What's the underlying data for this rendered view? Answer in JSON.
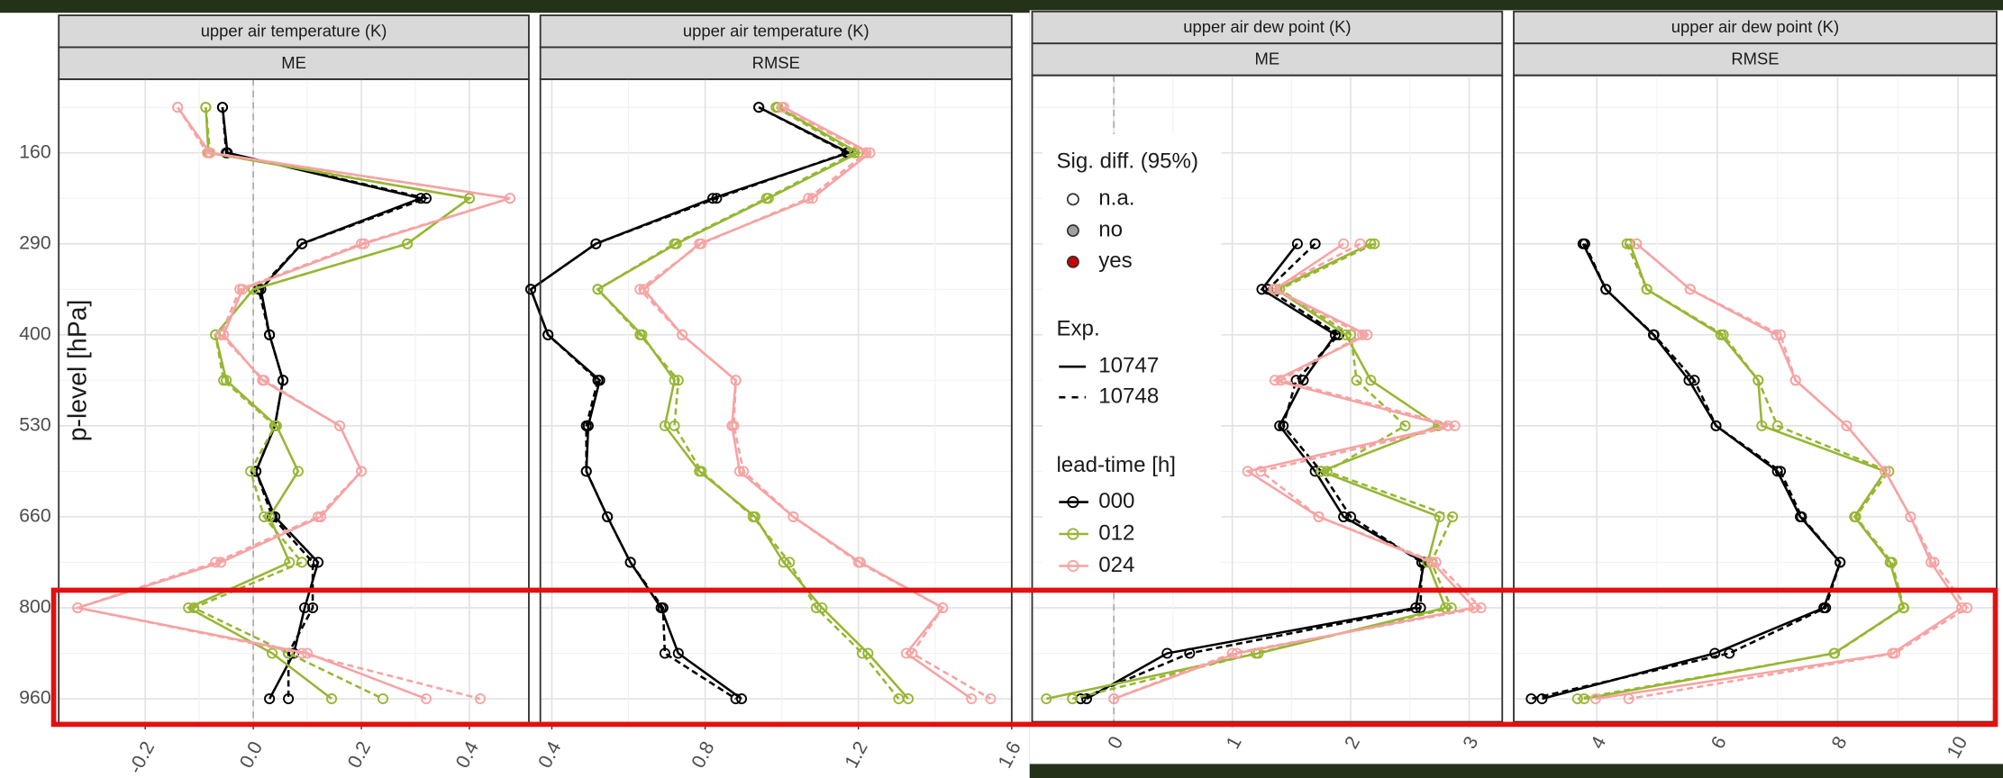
{
  "chart_data": [
    {
      "type": "line",
      "title": "upper air temperature (K)",
      "subtitle": "ME",
      "y_label": "p-level [hPa]",
      "zero_line": true,
      "grid": true,
      "categories": [
        null,
        "160",
        null,
        "290",
        null,
        "400",
        null,
        "530",
        null,
        "660",
        null,
        "800",
        null,
        "960"
      ],
      "xlim": [
        -0.36,
        0.51
      ],
      "xticks": [
        -0.2,
        {
          "value": 0,
          "label": "0.0"
        },
        0.2,
        0.4
      ],
      "series": [
        {
          "lead_time": "000",
          "exp": "10747",
          "color": "#000000",
          "line_style": "solid",
          "values": [
            -0.057,
            -0.048,
            0.31,
            0.09,
            0.014,
            0.03,
            0.055,
            0.04,
            0.005,
            0.04,
            0.12,
            0.095,
            0.075,
            0.03
          ]
        },
        {
          "lead_time": "000",
          "exp": "10748",
          "color": "#000000",
          "line_style": "dashed",
          "values": [
            -0.057,
            -0.05,
            0.32,
            0.09,
            0.01,
            0.03,
            0.055,
            0.04,
            0.005,
            0.035,
            0.11,
            0.11,
            0.065,
            0.065
          ]
        },
        {
          "lead_time": "012",
          "exp": "10747",
          "color": "#97b633",
          "line_style": "solid",
          "values": [
            -0.088,
            -0.083,
            0.4,
            0.285,
            0,
            -0.07,
            -0.05,
            0.043,
            0.083,
            0.03,
            0.067,
            -0.12,
            0.035,
            0.145
          ]
        },
        {
          "lead_time": "012",
          "exp": "10748",
          "color": "#97b633",
          "line_style": "dashed",
          "values": [
            -0.088,
            -0.08,
            0.4,
            0.285,
            0,
            -0.07,
            -0.055,
            0.04,
            -0.005,
            0.02,
            0.09,
            -0.11,
            0.065,
            0.24
          ]
        },
        {
          "lead_time": "024",
          "exp": "10747",
          "color": "#f6a3a3",
          "line_style": "solid",
          "values": [
            -0.14,
            -0.08,
            0.475,
            0.205,
            -0.02,
            -0.055,
            0.017,
            0.16,
            0.2,
            0.125,
            -0.06,
            -0.325,
            0.1,
            0.32
          ]
        },
        {
          "lead_time": "024",
          "exp": "10748",
          "color": "#f6a3a3",
          "line_style": "dashed",
          "values": [
            -0.14,
            -0.085,
            0.475,
            0.2,
            -0.025,
            -0.06,
            0.02,
            0.16,
            0.2,
            0.12,
            -0.07,
            -0.325,
            0.09,
            0.42
          ]
        }
      ]
    },
    {
      "type": "line",
      "title": "upper air temperature (K)",
      "subtitle": "RMSE",
      "zero_line": false,
      "grid": true,
      "categories": [
        null,
        "160",
        null,
        "290",
        null,
        "400",
        null,
        "530",
        null,
        "660",
        null,
        "800",
        null,
        "960"
      ],
      "xlim": [
        0.37,
        1.6
      ],
      "xticks": [
        0.4,
        0.8,
        1.2,
        1.6
      ],
      "series": [
        {
          "lead_time": "000",
          "exp": "10747",
          "color": "#000000",
          "line_style": "solid",
          "values": [
            0.94,
            1.175,
            0.82,
            0.515,
            0.345,
            0.39,
            0.525,
            0.495,
            0.49,
            0.545,
            0.605,
            0.685,
            0.73,
            0.895
          ]
        },
        {
          "lead_time": "000",
          "exp": "10748",
          "color": "#000000",
          "line_style": "dashed",
          "values": [
            0.94,
            1.17,
            0.83,
            0.515,
            0.345,
            0.39,
            0.52,
            0.49,
            0.49,
            0.545,
            0.605,
            0.69,
            0.695,
            0.88
          ]
        },
        {
          "lead_time": "012",
          "exp": "10747",
          "color": "#97b633",
          "line_style": "solid",
          "values": [
            0.99,
            1.2,
            0.965,
            0.725,
            0.52,
            0.635,
            0.72,
            0.695,
            0.785,
            0.93,
            1.005,
            1.105,
            1.225,
            1.33
          ]
        },
        {
          "lead_time": "012",
          "exp": "10748",
          "color": "#97b633",
          "line_style": "dashed",
          "values": [
            0.985,
            1.19,
            0.96,
            0.72,
            0.52,
            0.63,
            0.73,
            0.72,
            0.79,
            0.925,
            1.02,
            1.09,
            1.21,
            1.305
          ]
        },
        {
          "lead_time": "024",
          "exp": "10747",
          "color": "#f6a3a3",
          "line_style": "solid",
          "values": [
            1.005,
            1.23,
            1.08,
            0.785,
            0.64,
            0.74,
            0.88,
            0.87,
            0.89,
            1.03,
            1.205,
            1.42,
            1.325,
            1.495
          ]
        },
        {
          "lead_time": "024",
          "exp": "10748",
          "color": "#f6a3a3",
          "line_style": "dashed",
          "values": [
            1.0,
            1.22,
            1.07,
            0.79,
            0.63,
            0.74,
            0.88,
            0.875,
            0.9,
            1.03,
            1.2,
            1.42,
            1.34,
            1.545
          ]
        }
      ]
    },
    {
      "type": "line",
      "title": "upper air dew point (K)",
      "subtitle": "ME",
      "zero_line": true,
      "grid": true,
      "categories": [
        null,
        "160",
        null,
        "290",
        null,
        "400",
        null,
        "530",
        null,
        "660",
        null,
        "800",
        null,
        "960"
      ],
      "xlim": [
        -0.69,
        3.28
      ],
      "xticks": [
        0,
        1,
        2,
        3
      ],
      "legend": {
        "sig_title": "Sig. diff. (95%)",
        "sig_items": [
          {
            "name": "n.a.",
            "color": "#ffffff"
          },
          {
            "name": "no",
            "color": "#a0a0a0"
          },
          {
            "name": "yes",
            "color": "#cc0000"
          }
        ],
        "exp_title": "Exp.",
        "exp_items": [
          {
            "name": "10747",
            "line_style": "solid"
          },
          {
            "name": "10748",
            "line_style": "dashed"
          }
        ],
        "lead_title": "lead-time [h]",
        "lead_items": [
          {
            "name": "000",
            "color": "#000000"
          },
          {
            "name": "012",
            "color": "#97b633"
          },
          {
            "name": "024",
            "color": "#f6a3a3"
          }
        ]
      },
      "series": [
        {
          "lead_time": "000",
          "exp": "10747",
          "color": "#000000",
          "line_style": "solid",
          "values": [
            null,
            null,
            null,
            1.55,
            1.25,
            1.87,
            1.6,
            1.4,
            1.7,
            1.94,
            2.62,
            2.55,
            0.45,
            -0.23
          ]
        },
        {
          "lead_time": "000",
          "exp": "10748",
          "color": "#000000",
          "line_style": "dashed",
          "values": [
            null,
            null,
            null,
            1.7,
            1.3,
            1.9,
            1.54,
            1.43,
            1.75,
            2.0,
            2.6,
            2.59,
            0.64,
            -0.28
          ]
        },
        {
          "lead_time": "012",
          "exp": "10747",
          "color": "#97b633",
          "line_style": "solid",
          "values": [
            null,
            null,
            null,
            2.17,
            1.37,
            1.96,
            2.17,
            2.74,
            1.75,
            2.75,
            2.65,
            2.8,
            1.22,
            -0.57
          ]
        },
        {
          "lead_time": "012",
          "exp": "10748",
          "color": "#97b633",
          "line_style": "dashed",
          "values": [
            null,
            null,
            null,
            2.2,
            1.4,
            2.0,
            2.05,
            2.46,
            1.8,
            2.86,
            2.68,
            2.85,
            1.2,
            -0.35
          ]
        },
        {
          "lead_time": "024",
          "exp": "10747",
          "color": "#f6a3a3",
          "line_style": "solid",
          "values": [
            null,
            null,
            null,
            1.94,
            1.36,
            2.14,
            1.36,
            2.82,
            1.13,
            1.73,
            2.69,
            3.04,
            1.04,
            0
          ]
        },
        {
          "lead_time": "024",
          "exp": "10748",
          "color": "#f6a3a3",
          "line_style": "dashed",
          "values": [
            null,
            null,
            null,
            2.08,
            1.35,
            2.1,
            1.41,
            2.88,
            1.24,
            1.73,
            2.72,
            3.1,
            1.0,
            0
          ]
        }
      ]
    },
    {
      "type": "line",
      "title": "upper air dew point (K)",
      "subtitle": "RMSE",
      "zero_line": false,
      "grid": true,
      "categories": [
        null,
        "160",
        null,
        "290",
        null,
        "400",
        null,
        "530",
        null,
        "660",
        null,
        "800",
        null,
        "960"
      ],
      "xlim": [
        2.62,
        10.64
      ],
      "xticks": [
        4,
        6,
        8,
        10
      ],
      "series": [
        {
          "lead_time": "000",
          "exp": "10747",
          "color": "#000000",
          "line_style": "solid",
          "values": [
            null,
            null,
            null,
            3.77,
            4.15,
            4.94,
            5.53,
            5.98,
            7.0,
            7.38,
            8.04,
            7.77,
            5.96,
            3.09
          ]
        },
        {
          "lead_time": "000",
          "exp": "10748",
          "color": "#000000",
          "line_style": "dashed",
          "values": [
            null,
            null,
            null,
            3.8,
            4.15,
            4.95,
            5.62,
            5.98,
            7.05,
            7.4,
            8.04,
            7.8,
            6.2,
            2.91
          ]
        },
        {
          "lead_time": "012",
          "exp": "10747",
          "color": "#97b633",
          "line_style": "solid",
          "values": [
            null,
            null,
            null,
            4.55,
            4.83,
            6.06,
            6.68,
            6.74,
            8.79,
            8.28,
            8.87,
            9.09,
            7.94,
            3.79
          ]
        },
        {
          "lead_time": "012",
          "exp": "10748",
          "color": "#97b633",
          "line_style": "dashed",
          "values": [
            null,
            null,
            null,
            4.5,
            4.83,
            6.1,
            6.68,
            7.0,
            8.85,
            8.3,
            8.9,
            9.1,
            7.95,
            3.68
          ]
        },
        {
          "lead_time": "024",
          "exp": "10747",
          "color": "#f6a3a3",
          "line_style": "solid",
          "values": [
            null,
            null,
            null,
            4.66,
            5.55,
            6.98,
            7.3,
            8.15,
            8.79,
            9.21,
            9.55,
            10.06,
            8.91,
            3.98
          ]
        },
        {
          "lead_time": "024",
          "exp": "10748",
          "color": "#f6a3a3",
          "line_style": "dashed",
          "values": [
            null,
            null,
            null,
            4.66,
            5.55,
            7.05,
            7.3,
            8.15,
            8.79,
            9.21,
            9.6,
            10.15,
            8.95,
            4.53
          ]
        }
      ]
    }
  ]
}
